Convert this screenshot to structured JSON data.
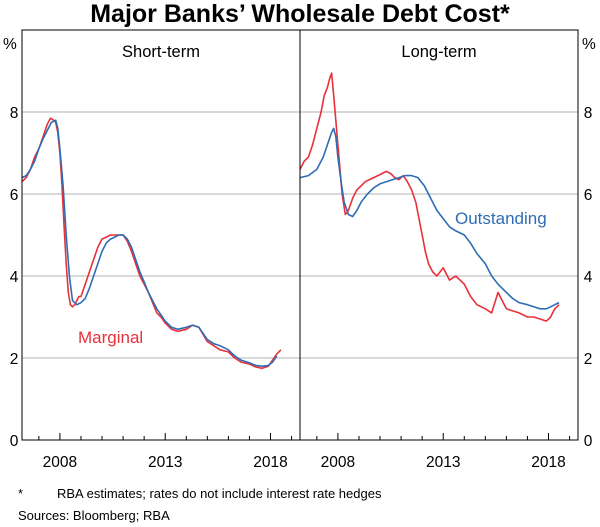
{
  "chart_data": {
    "type": "line",
    "title": "Major Banks’ Wholesale Debt Cost*",
    "unit_left": "%",
    "unit_right": "%",
    "ylim": [
      0,
      10
    ],
    "yticks": [
      0,
      2,
      4,
      6,
      8
    ],
    "xlim": [
      2006.2,
      2019.4
    ],
    "xticks": [
      2008,
      2013,
      2018
    ],
    "grid": true,
    "colors": {
      "marginal": "#e8313a",
      "outstanding": "#2e6db4"
    },
    "panels": [
      {
        "title": "Short-term",
        "series": [
          {
            "name": "Marginal",
            "color": "#e8313a",
            "x": [
              2006.2,
              2006.4,
              2006.6,
              2006.8,
              2007.0,
              2007.2,
              2007.4,
              2007.55,
              2007.7,
              2007.8,
              2007.9,
              2008.0,
              2008.1,
              2008.2,
              2008.3,
              2008.4,
              2008.5,
              2008.6,
              2008.7,
              2008.8,
              2008.9,
              2009.0,
              2009.2,
              2009.4,
              2009.6,
              2009.8,
              2010.0,
              2010.2,
              2010.4,
              2010.6,
              2010.8,
              2011.0,
              2011.2,
              2011.4,
              2011.6,
              2011.8,
              2012.0,
              2012.2,
              2012.4,
              2012.6,
              2012.8,
              2013.0,
              2013.3,
              2013.6,
              2014.0,
              2014.3,
              2014.6,
              2015.0,
              2015.3,
              2015.6,
              2016.0,
              2016.3,
              2016.6,
              2017.0,
              2017.3,
              2017.6,
              2017.9,
              2018.1,
              2018.3,
              2018.5
            ],
            "values": [
              6.3,
              6.4,
              6.6,
              6.9,
              7.1,
              7.4,
              7.7,
              7.85,
              7.8,
              7.75,
              7.5,
              7.0,
              6.2,
              5.2,
              4.3,
              3.6,
              3.3,
              3.25,
              3.3,
              3.4,
              3.5,
              3.5,
              3.8,
              4.1,
              4.4,
              4.7,
              4.9,
              4.95,
              5.0,
              5.0,
              5.0,
              5.0,
              4.85,
              4.6,
              4.3,
              4.0,
              3.8,
              3.6,
              3.35,
              3.1,
              3.0,
              2.85,
              2.7,
              2.65,
              2.7,
              2.8,
              2.75,
              2.4,
              2.3,
              2.2,
              2.15,
              2.0,
              1.9,
              1.85,
              1.78,
              1.75,
              1.8,
              1.95,
              2.1,
              2.2
            ]
          },
          {
            "name": "",
            "color": "#2e6db4",
            "x": [
              2006.2,
              2006.4,
              2006.6,
              2006.8,
              2007.0,
              2007.2,
              2007.4,
              2007.6,
              2007.8,
              2007.9,
              2008.0,
              2008.15,
              2008.3,
              2008.45,
              2008.6,
              2008.8,
              2009.0,
              2009.2,
              2009.4,
              2009.6,
              2009.8,
              2010.0,
              2010.2,
              2010.4,
              2010.6,
              2010.8,
              2011.0,
              2011.2,
              2011.4,
              2011.6,
              2011.8,
              2012.0,
              2012.2,
              2012.4,
              2012.6,
              2012.8,
              2013.0,
              2013.3,
              2013.6,
              2014.0,
              2014.3,
              2014.6,
              2015.0,
              2015.3,
              2015.6,
              2016.0,
              2016.3,
              2016.6,
              2017.0,
              2017.3,
              2017.6,
              2017.9,
              2018.1,
              2018.3
            ],
            "values": [
              6.4,
              6.45,
              6.6,
              6.8,
              7.1,
              7.35,
              7.55,
              7.75,
              7.8,
              7.6,
              7.1,
              6.2,
              5.0,
              4.0,
              3.4,
              3.3,
              3.35,
              3.45,
              3.7,
              4.0,
              4.3,
              4.6,
              4.8,
              4.9,
              4.95,
              5.0,
              5.0,
              4.9,
              4.7,
              4.4,
              4.1,
              3.85,
              3.6,
              3.4,
              3.2,
              3.05,
              2.9,
              2.75,
              2.7,
              2.75,
              2.8,
              2.75,
              2.45,
              2.35,
              2.3,
              2.2,
              2.05,
              1.95,
              1.88,
              1.82,
              1.8,
              1.82,
              1.9,
              2.05
            ]
          }
        ],
        "annotations": [
          {
            "text": "Marginal",
            "series": 0
          }
        ]
      },
      {
        "title": "Long-term",
        "series": [
          {
            "name": "",
            "color": "#e8313a",
            "x": [
              2006.2,
              2006.4,
              2006.6,
              2006.8,
              2007.0,
              2007.2,
              2007.35,
              2007.5,
              2007.6,
              2007.7,
              2007.8,
              2007.9,
              2008.0,
              2008.1,
              2008.2,
              2008.35,
              2008.5,
              2008.7,
              2008.9,
              2009.1,
              2009.3,
              2009.5,
              2009.7,
              2009.9,
              2010.1,
              2010.3,
              2010.5,
              2010.7,
              2010.9,
              2011.1,
              2011.3,
              2011.5,
              2011.7,
              2011.85,
              2012.0,
              2012.15,
              2012.3,
              2012.5,
              2012.7,
              2013.0,
              2013.3,
              2013.6,
              2014.0,
              2014.3,
              2014.6,
              2015.0,
              2015.3,
              2015.6,
              2016.0,
              2016.3,
              2016.6,
              2017.0,
              2017.3,
              2017.6,
              2017.9,
              2018.1,
              2018.3,
              2018.5
            ],
            "values": [
              6.6,
              6.8,
              6.9,
              7.2,
              7.6,
              8.0,
              8.4,
              8.6,
              8.8,
              8.95,
              8.4,
              7.8,
              7.2,
              6.6,
              6.0,
              5.5,
              5.6,
              5.9,
              6.1,
              6.2,
              6.3,
              6.35,
              6.4,
              6.45,
              6.5,
              6.55,
              6.5,
              6.4,
              6.35,
              6.45,
              6.3,
              6.1,
              5.8,
              5.4,
              5.0,
              4.6,
              4.3,
              4.1,
              4.0,
              4.2,
              3.9,
              4.0,
              3.8,
              3.5,
              3.3,
              3.2,
              3.1,
              3.6,
              3.2,
              3.15,
              3.1,
              3.0,
              3.0,
              2.95,
              2.9,
              3.0,
              3.2,
              3.3
            ]
          },
          {
            "name": "Outstanding",
            "color": "#2e6db4",
            "x": [
              2006.2,
              2006.6,
              2007.0,
              2007.3,
              2007.5,
              2007.7,
              2007.8,
              2007.9,
              2008.0,
              2008.15,
              2008.3,
              2008.5,
              2008.7,
              2008.9,
              2009.1,
              2009.4,
              2009.7,
              2010.0,
              2010.3,
              2010.6,
              2010.9,
              2011.2,
              2011.5,
              2011.8,
              2012.1,
              2012.4,
              2012.7,
              2013.0,
              2013.3,
              2013.6,
              2014.0,
              2014.3,
              2014.6,
              2015.0,
              2015.3,
              2015.6,
              2016.0,
              2016.3,
              2016.6,
              2017.0,
              2017.3,
              2017.6,
              2017.9,
              2018.1,
              2018.3,
              2018.5
            ],
            "values": [
              6.4,
              6.45,
              6.6,
              6.9,
              7.2,
              7.5,
              7.6,
              7.4,
              6.9,
              6.3,
              5.8,
              5.5,
              5.45,
              5.6,
              5.8,
              6.0,
              6.15,
              6.25,
              6.3,
              6.35,
              6.4,
              6.45,
              6.45,
              6.4,
              6.2,
              5.9,
              5.6,
              5.4,
              5.2,
              5.1,
              5.0,
              4.8,
              4.55,
              4.3,
              4.0,
              3.8,
              3.6,
              3.45,
              3.35,
              3.3,
              3.25,
              3.2,
              3.2,
              3.25,
              3.3,
              3.35
            ]
          }
        ],
        "annotations": [
          {
            "text": "Outstanding",
            "series": 1
          }
        ]
      }
    ],
    "footnote": {
      "marker": "*",
      "text": "RBA estimates; rates do not include interest rate hedges"
    },
    "sources": "Sources: Bloomberg; RBA"
  }
}
